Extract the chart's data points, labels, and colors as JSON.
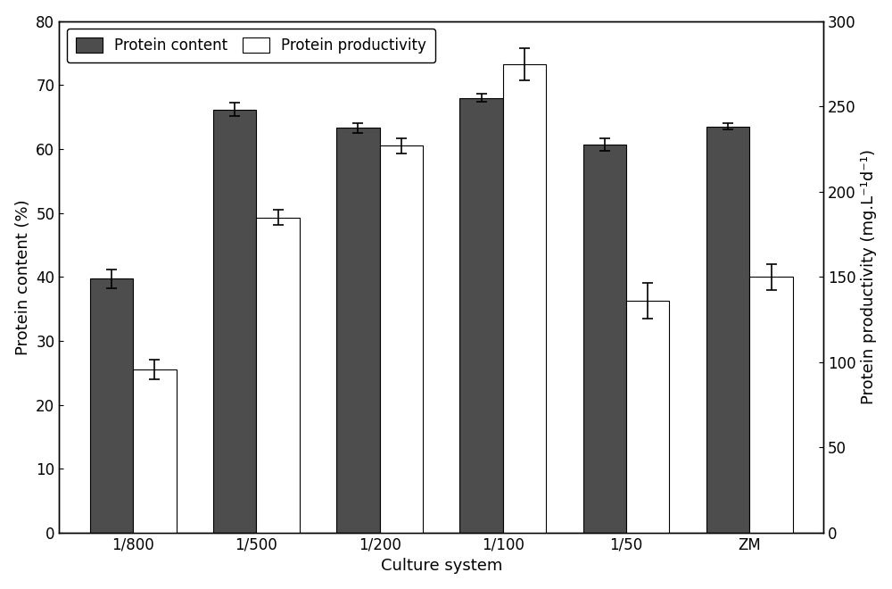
{
  "categories": [
    "1/800",
    "1/500",
    "1/200",
    "1/100",
    "1/50",
    "ZM"
  ],
  "protein_content": [
    39.7,
    66.2,
    63.3,
    68.0,
    60.7,
    63.5
  ],
  "protein_content_err": [
    1.5,
    1.0,
    0.8,
    0.6,
    1.0,
    0.5
  ],
  "protein_productivity_left": [
    25.5,
    49.3,
    60.5,
    73.3,
    36.3,
    40.0
  ],
  "protein_productivity_err_left": [
    1.5,
    1.2,
    1.2,
    2.5,
    2.8,
    2.0
  ],
  "left_ylim": [
    0,
    80
  ],
  "left_yticks": [
    0,
    10,
    20,
    30,
    40,
    50,
    60,
    70,
    80
  ],
  "right_ylim": [
    0,
    300
  ],
  "right_yticks": [
    0,
    50,
    100,
    150,
    200,
    250,
    300
  ],
  "xlabel": "Culture system",
  "ylabel_left": "Protein content (%)",
  "ylabel_right": "Protein productivity (mg.L⁻¹d⁻¹)",
  "dark_color": "#4d4d4d",
  "light_color": "#ffffff",
  "bar_edge_color": "#000000",
  "bar_width": 0.35,
  "legend_protein_content": "Protein content",
  "legend_protein_productivity": "Protein productivity",
  "background_color": "#ffffff"
}
